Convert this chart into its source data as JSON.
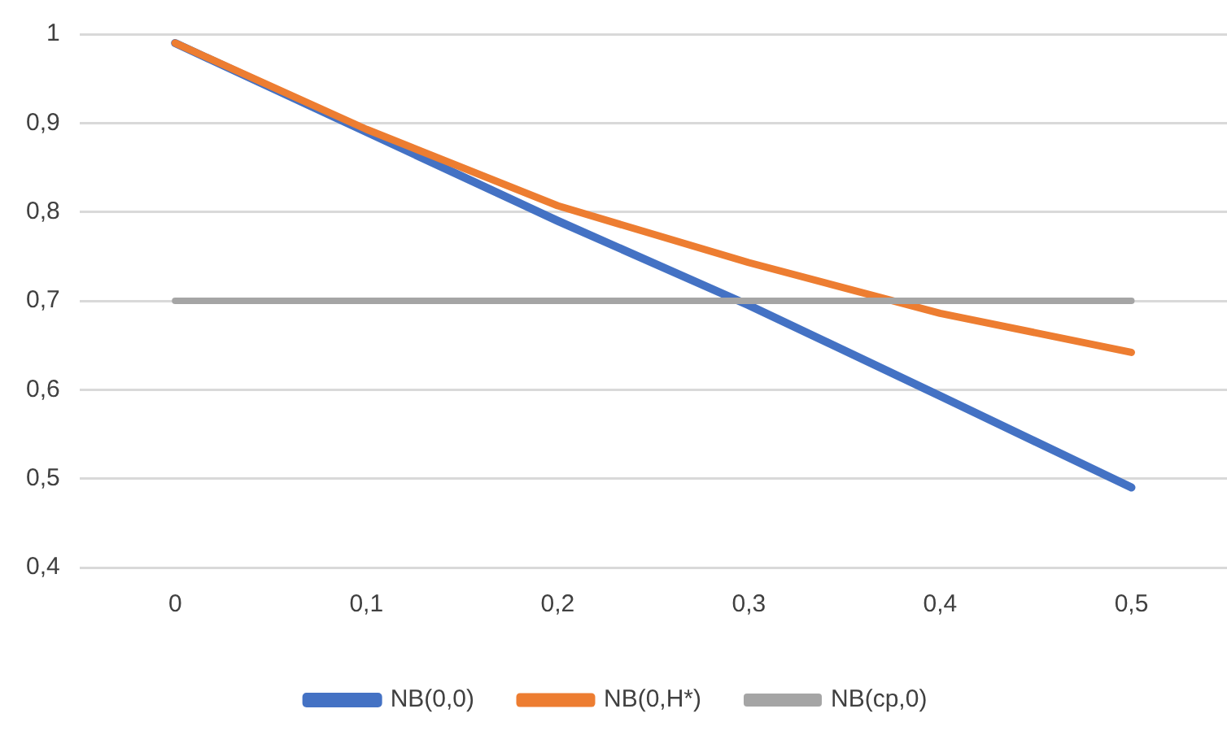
{
  "chart_data": {
    "type": "line",
    "categories": [
      "0",
      "0,1",
      "0,2",
      "0,3",
      "0,4",
      "0,5"
    ],
    "series": [
      {
        "name": "NB(0,0)",
        "color": "#4472c4",
        "values": [
          0.99,
          0.89,
          0.79,
          0.695,
          0.593,
          0.49
        ]
      },
      {
        "name": "NB(0,H*)",
        "color": "#ed7d31",
        "values": [
          0.99,
          0.893,
          0.807,
          0.743,
          0.686,
          0.642
        ]
      },
      {
        "name": "NB(cp,0)",
        "color": "#a5a5a5",
        "values": [
          0.7,
          0.7,
          0.7,
          0.7,
          0.7,
          0.7
        ]
      }
    ],
    "ylim": [
      0.4,
      1
    ],
    "yticks": [
      {
        "value": 0.4,
        "label": "0,4"
      },
      {
        "value": 0.5,
        "label": "0,5"
      },
      {
        "value": 0.6,
        "label": "0,6"
      },
      {
        "value": 0.7,
        "label": "0,7"
      },
      {
        "value": 0.8,
        "label": "0,8"
      },
      {
        "value": 0.9,
        "label": "0,9"
      },
      1
    ],
    "grid": "y",
    "legend": "bottom",
    "marker": "none",
    "line_style": "solid"
  }
}
